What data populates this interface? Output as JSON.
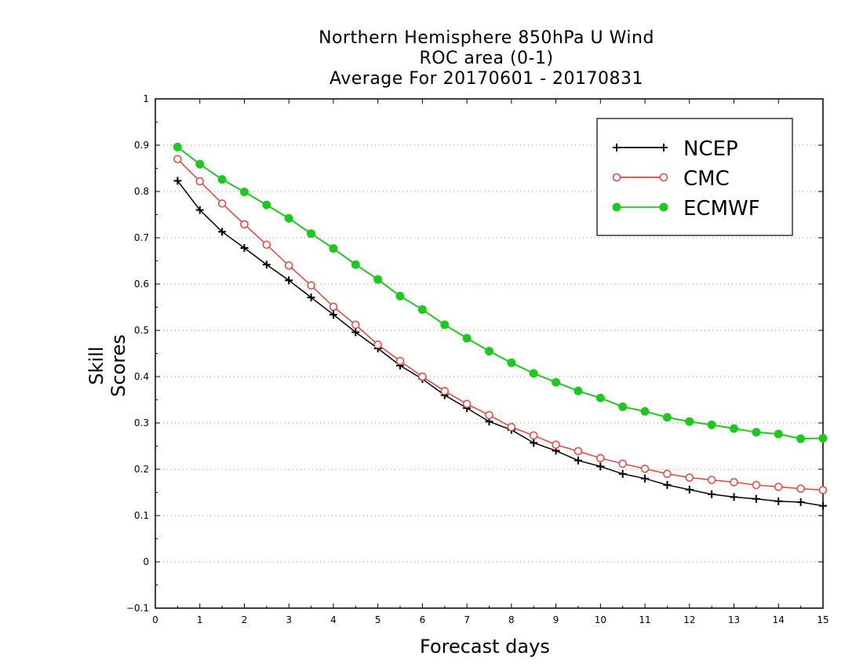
{
  "chart_data": {
    "type": "line",
    "title_lines": [
      "Northern Hemisphere 850hPa U Wind",
      "ROC area (0-1)",
      "Average For 20170601 - 20170831"
    ],
    "xlabel": "Forecast days",
    "ylabel": "Skill Scores",
    "xlim": [
      0,
      15
    ],
    "ylim": [
      -0.1,
      1
    ],
    "xticks": [
      "0",
      "1",
      "2",
      "3",
      "4",
      "5",
      "6",
      "7",
      "8",
      "9",
      "10",
      "11",
      "12",
      "13",
      "14",
      "15"
    ],
    "yticks": [
      "−0.1",
      "0",
      "0.1",
      "0.2",
      "0.3",
      "0.4",
      "0.5",
      "0.6",
      "0.7",
      "0.8",
      "0.9",
      "1"
    ],
    "grid": "horizontal dotted",
    "legend_position": "top-right",
    "x": [
      0.5,
      1,
      1.5,
      2,
      2.5,
      3,
      3.5,
      4,
      4.5,
      5,
      5.5,
      6,
      6.5,
      7,
      7.5,
      8,
      8.5,
      9,
      9.5,
      10,
      10.5,
      11,
      11.5,
      12,
      12.5,
      13,
      13.5,
      14,
      14.5,
      15
    ],
    "series": [
      {
        "name": "NCEP",
        "color": "#000000",
        "marker": "plus",
        "values": [
          0.823,
          0.76,
          0.713,
          0.678,
          0.642,
          0.608,
          0.571,
          0.534,
          0.496,
          0.461,
          0.424,
          0.395,
          0.36,
          0.332,
          0.303,
          0.285,
          0.257,
          0.24,
          0.219,
          0.206,
          0.19,
          0.18,
          0.166,
          0.156,
          0.146,
          0.14,
          0.136,
          0.131,
          0.129,
          0.121
        ]
      },
      {
        "name": "CMC",
        "color": "#e8413a",
        "marker": "open-circle",
        "values": [
          0.87,
          0.822,
          0.774,
          0.729,
          0.685,
          0.64,
          0.597,
          0.551,
          0.512,
          0.469,
          0.434,
          0.4,
          0.369,
          0.341,
          0.317,
          0.291,
          0.273,
          0.253,
          0.239,
          0.224,
          0.212,
          0.201,
          0.19,
          0.182,
          0.177,
          0.172,
          0.166,
          0.162,
          0.158,
          0.155
        ]
      },
      {
        "name": "ECMWF",
        "color": "#1ec81e",
        "marker": "filled-circle",
        "values": [
          0.896,
          0.859,
          0.826,
          0.799,
          0.771,
          0.742,
          0.709,
          0.677,
          0.642,
          0.61,
          0.574,
          0.545,
          0.512,
          0.483,
          0.455,
          0.43,
          0.407,
          0.388,
          0.369,
          0.354,
          0.335,
          0.325,
          0.312,
          0.303,
          0.296,
          0.288,
          0.28,
          0.276,
          0.266,
          0.267
        ]
      }
    ]
  }
}
